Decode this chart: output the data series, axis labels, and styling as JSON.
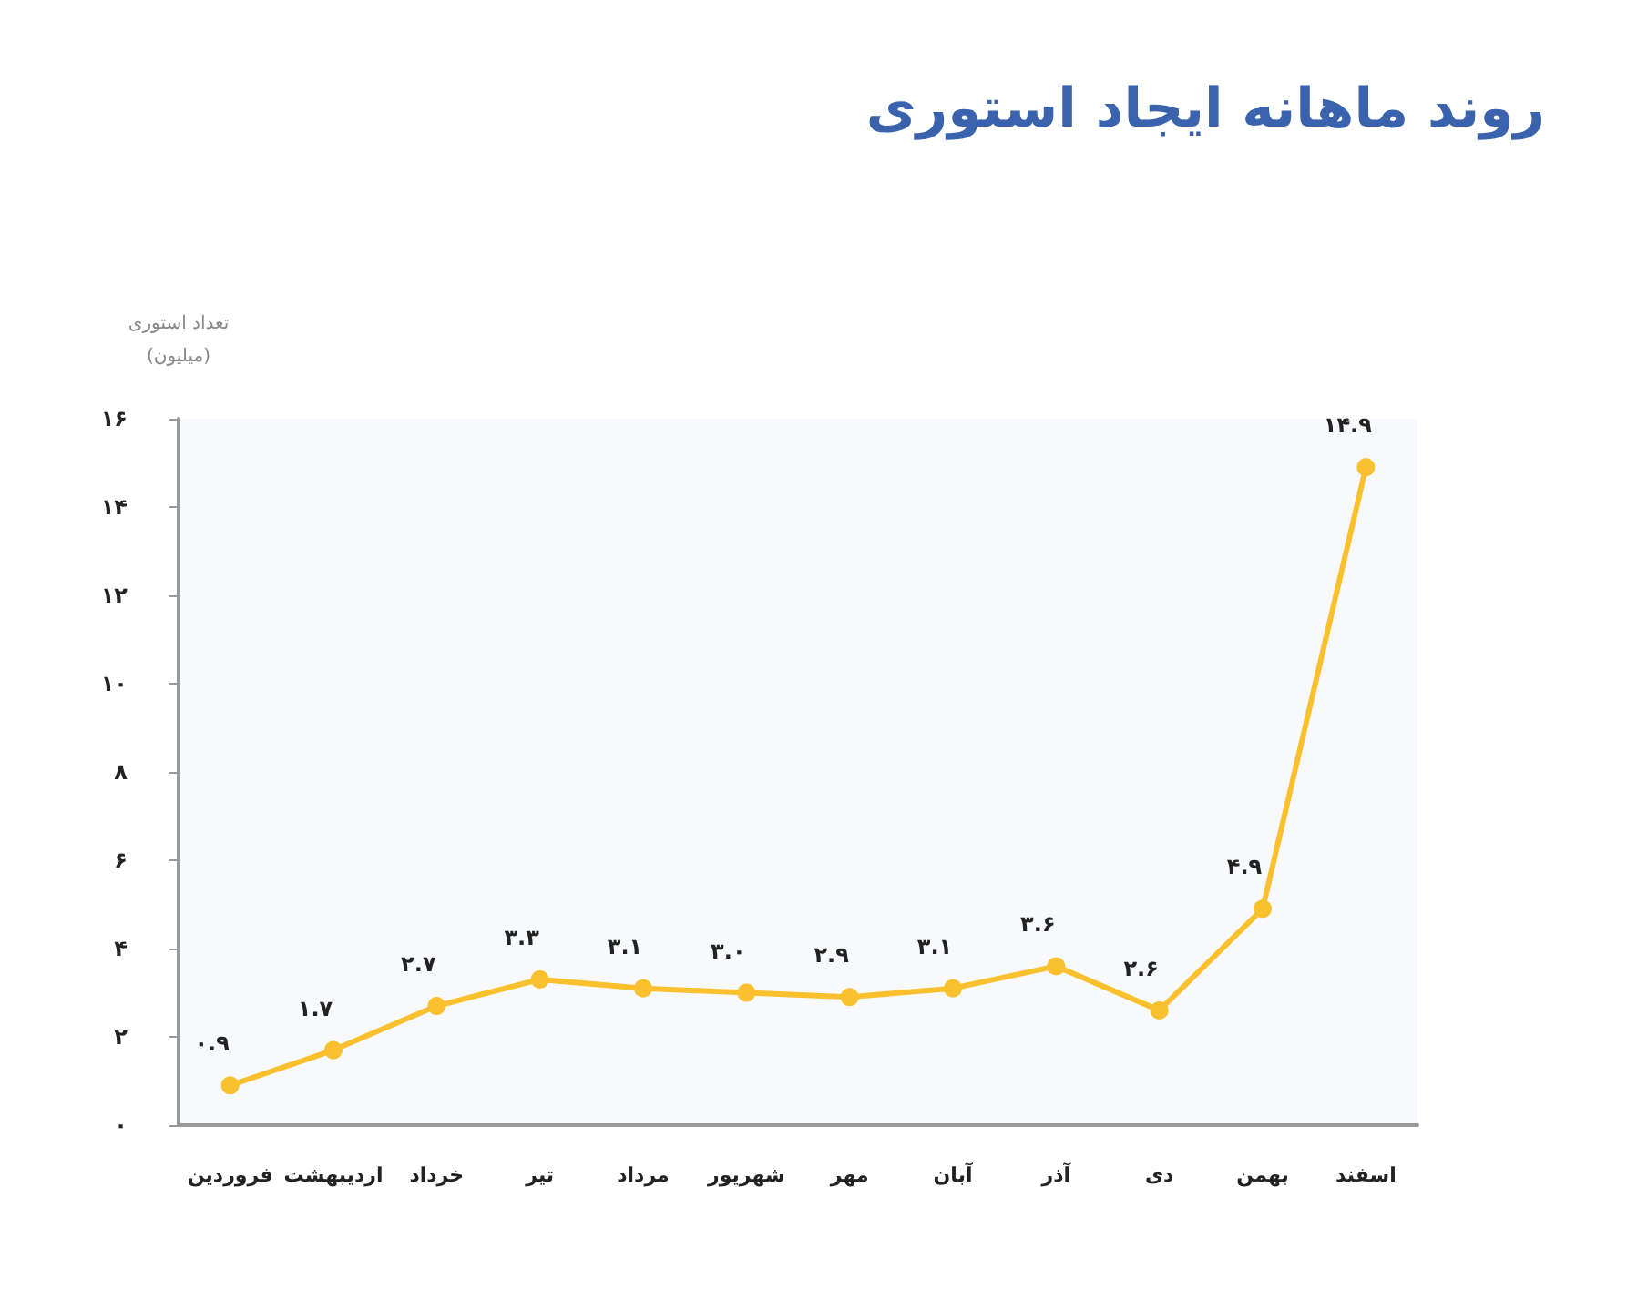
{
  "chart_data": {
    "type": "line",
    "title": "روند ماهانه ایجاد استوری",
    "ylabel": "تعداد استوری\n(میلیون)",
    "categories": [
      "فروردین",
      "اردیبهشت",
      "خرداد",
      "تیر",
      "مرداد",
      "شهریور",
      "مهر",
      "آبان",
      "آذر",
      "دی",
      "بهمن",
      "اسفند"
    ],
    "series": [
      {
        "color": "#fbc02d",
        "values": [
          0.9,
          1.7,
          2.7,
          3.3,
          3.1,
          3.0,
          2.9,
          3.1,
          3.6,
          2.6,
          4.9,
          14.9
        ],
        "value_labels": [
          "۰.۹",
          "۱.۷",
          "۲.۷",
          "۳.۳",
          "۳.۱",
          "۳.۰",
          "۲.۹",
          "۳.۱",
          "۳.۶",
          "۲.۶",
          "۴.۹",
          "۱۴.۹"
        ]
      }
    ],
    "ylim": [
      0,
      16
    ],
    "yticks": [
      {
        "value": 0,
        "label": "۰"
      },
      {
        "value": 2,
        "label": "۲"
      },
      {
        "value": 4,
        "label": "۴"
      },
      {
        "value": 6,
        "label": "۶"
      },
      {
        "value": 8,
        "label": "۸"
      },
      {
        "value": 10,
        "label": "۱۰"
      },
      {
        "value": 12,
        "label": "۱۲"
      },
      {
        "value": 14,
        "label": "۱۴"
      },
      {
        "value": 16,
        "label": "۱۶"
      }
    ],
    "grid": false,
    "marker": "circle",
    "line_style": "solid"
  }
}
